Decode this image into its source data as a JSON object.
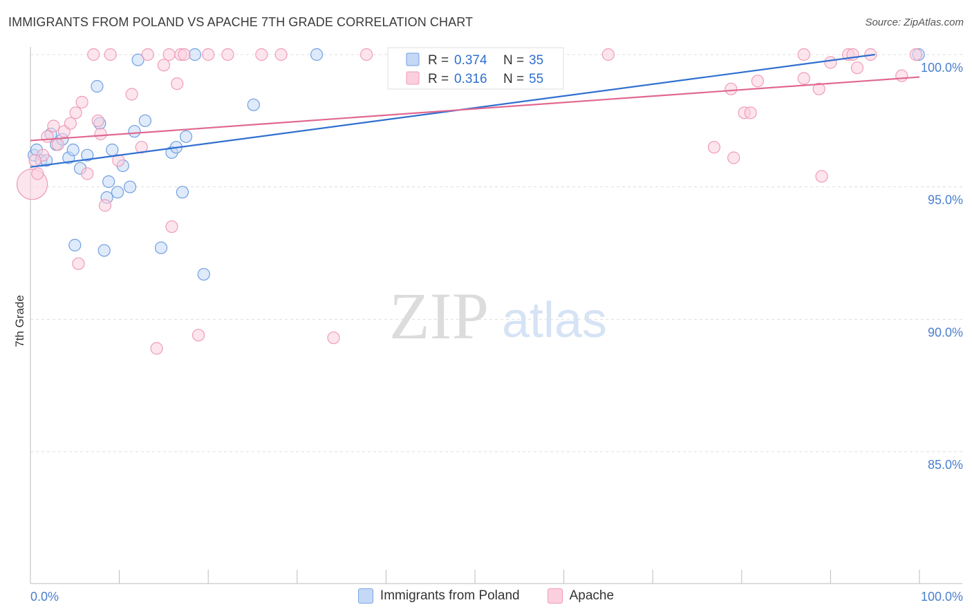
{
  "title": "IMMIGRANTS FROM POLAND VS APACHE 7TH GRADE CORRELATION CHART",
  "source": "Source: ZipAtlas.com",
  "watermark": {
    "zip": "ZIP",
    "atlas": "atlas"
  },
  "chart_data": {
    "type": "scatter",
    "title": "IMMIGRANTS FROM POLAND VS APACHE 7TH GRADE CORRELATION CHART",
    "xlabel": "",
    "ylabel": "7th Grade",
    "xlim": [
      0,
      100
    ],
    "ylim": [
      80.5,
      100.7
    ],
    "x_tick_labels": [
      "0.0%",
      "100.0%"
    ],
    "y_ticks": [
      {
        "value": 100,
        "label": "100.0%"
      },
      {
        "value": 95,
        "label": "95.0%"
      },
      {
        "value": 90,
        "label": "90.0%"
      },
      {
        "value": 85,
        "label": "85.0%"
      }
    ],
    "legend_stats": [
      {
        "r_label": "R =",
        "r_value": "0.374",
        "n_label": "N =",
        "n_value": "35"
      },
      {
        "r_label": "R =",
        "r_value": "0.316",
        "n_label": "N =",
        "n_value": "55"
      }
    ],
    "series": [
      {
        "name": "Immigrants from Poland",
        "color": "#6f9fe0",
        "fill": "#c5d8f5",
        "line_color": "#2f6fd0",
        "trend": {
          "x": [
            0,
            95
          ],
          "y": [
            95.75,
            100.0
          ]
        },
        "points": [
          [
            0.4,
            96.2
          ],
          [
            0.7,
            96.4
          ],
          [
            1.2,
            96.0
          ],
          [
            1.8,
            96.0
          ],
          [
            2.3,
            97.0
          ],
          [
            2.9,
            96.6
          ],
          [
            3.6,
            96.8
          ],
          [
            4.3,
            96.1
          ],
          [
            4.8,
            96.4
          ],
          [
            5.6,
            95.7
          ],
          [
            6.4,
            96.2
          ],
          [
            7.5,
            98.8
          ],
          [
            7.8,
            97.4
          ],
          [
            8.3,
            92.6
          ],
          [
            8.6,
            94.6
          ],
          [
            8.8,
            95.2
          ],
          [
            9.2,
            96.4
          ],
          [
            9.8,
            94.8
          ],
          [
            10.4,
            95.8
          ],
          [
            11.2,
            95.0
          ],
          [
            11.7,
            97.1
          ],
          [
            12.1,
            99.8
          ],
          [
            12.9,
            97.5
          ],
          [
            14.7,
            92.7
          ],
          [
            15.9,
            96.3
          ],
          [
            16.4,
            96.5
          ],
          [
            17.1,
            94.8
          ],
          [
            17.5,
            96.9
          ],
          [
            18.5,
            100.0
          ],
          [
            19.5,
            91.7
          ],
          [
            25.1,
            98.1
          ],
          [
            32.2,
            100.0
          ],
          [
            49.0,
            99.8
          ],
          [
            99.9,
            100.0
          ],
          [
            5.0,
            92.8
          ]
        ]
      },
      {
        "name": "Apache",
        "color": "#ef9bb7",
        "fill": "#fbd0de",
        "line_color": "#e0688f",
        "trend": {
          "x": [
            0,
            100
          ],
          "y": [
            96.75,
            99.15
          ]
        },
        "points": [
          [
            0.2,
            95.1
          ],
          [
            0.8,
            95.5
          ],
          [
            1.4,
            96.2
          ],
          [
            1.9,
            96.9
          ],
          [
            2.6,
            97.3
          ],
          [
            3.1,
            96.6
          ],
          [
            3.8,
            97.1
          ],
          [
            4.5,
            97.4
          ],
          [
            5.1,
            97.8
          ],
          [
            5.4,
            92.1
          ],
          [
            5.8,
            98.2
          ],
          [
            6.4,
            95.5
          ],
          [
            7.1,
            100.0
          ],
          [
            7.6,
            97.5
          ],
          [
            7.9,
            97.0
          ],
          [
            8.4,
            94.3
          ],
          [
            9.0,
            100.0
          ],
          [
            9.9,
            96.0
          ],
          [
            11.4,
            98.5
          ],
          [
            12.5,
            96.5
          ],
          [
            13.2,
            100.0
          ],
          [
            14.2,
            88.9
          ],
          [
            15.0,
            99.6
          ],
          [
            15.6,
            100.0
          ],
          [
            15.9,
            93.5
          ],
          [
            16.5,
            98.9
          ],
          [
            16.9,
            100.0
          ],
          [
            17.3,
            100.0
          ],
          [
            18.9,
            89.4
          ],
          [
            20.0,
            100.0
          ],
          [
            22.2,
            100.0
          ],
          [
            26.0,
            100.0
          ],
          [
            28.2,
            100.0
          ],
          [
            34.1,
            89.3
          ],
          [
            37.8,
            100.0
          ],
          [
            41.1,
            100.0
          ],
          [
            65.0,
            100.0
          ],
          [
            76.9,
            96.5
          ],
          [
            78.8,
            98.7
          ],
          [
            79.1,
            96.1
          ],
          [
            80.3,
            97.8
          ],
          [
            81.0,
            97.8
          ],
          [
            81.8,
            99.0
          ],
          [
            87.0,
            100.0
          ],
          [
            87.0,
            99.1
          ],
          [
            88.7,
            98.7
          ],
          [
            89.0,
            95.4
          ],
          [
            90.0,
            99.7
          ],
          [
            92.0,
            100.0
          ],
          [
            92.5,
            100.0
          ],
          [
            93.0,
            99.5
          ],
          [
            94.5,
            100.0
          ],
          [
            98.0,
            99.2
          ],
          [
            99.6,
            100.0
          ],
          [
            0.5,
            96.0
          ]
        ]
      }
    ]
  }
}
